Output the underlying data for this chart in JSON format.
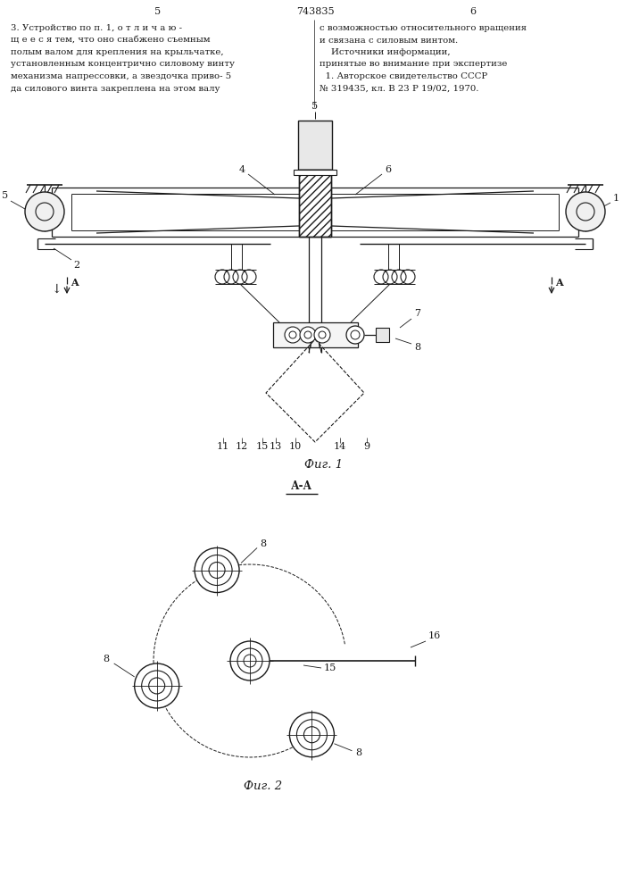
{
  "page_number_left": "5",
  "page_number_center": "743835",
  "page_number_right": "6",
  "fig1_caption": "Фиг. 1",
  "fig2_caption": "Фиг. 2",
  "fig2_section_label": "А-А",
  "bg_color": "#ffffff",
  "line_color": "#1a1a1a",
  "text_color": "#1a1a1a",
  "left_text": [
    "3. Устройство по п. 1, о т л и ч а ю -",
    "щ е е с я тем, что оно снабжено съемным",
    "полым валом для крепления на крыльчатке,",
    "установленным концентрично силовому винту",
    "механизма напрессовки, а звездочка приво- 5",
    "да силового винта закреплена на этом валу"
  ],
  "right_text": [
    "с возможностью относительного вращения",
    "и связана с силовым винтом.",
    "    Источники информации,",
    "принятые во внимание при экспертизе",
    "  1. Авторское свидетельство СССР",
    "№ 319435, кл. В 23 Р 19/02, 1970."
  ]
}
